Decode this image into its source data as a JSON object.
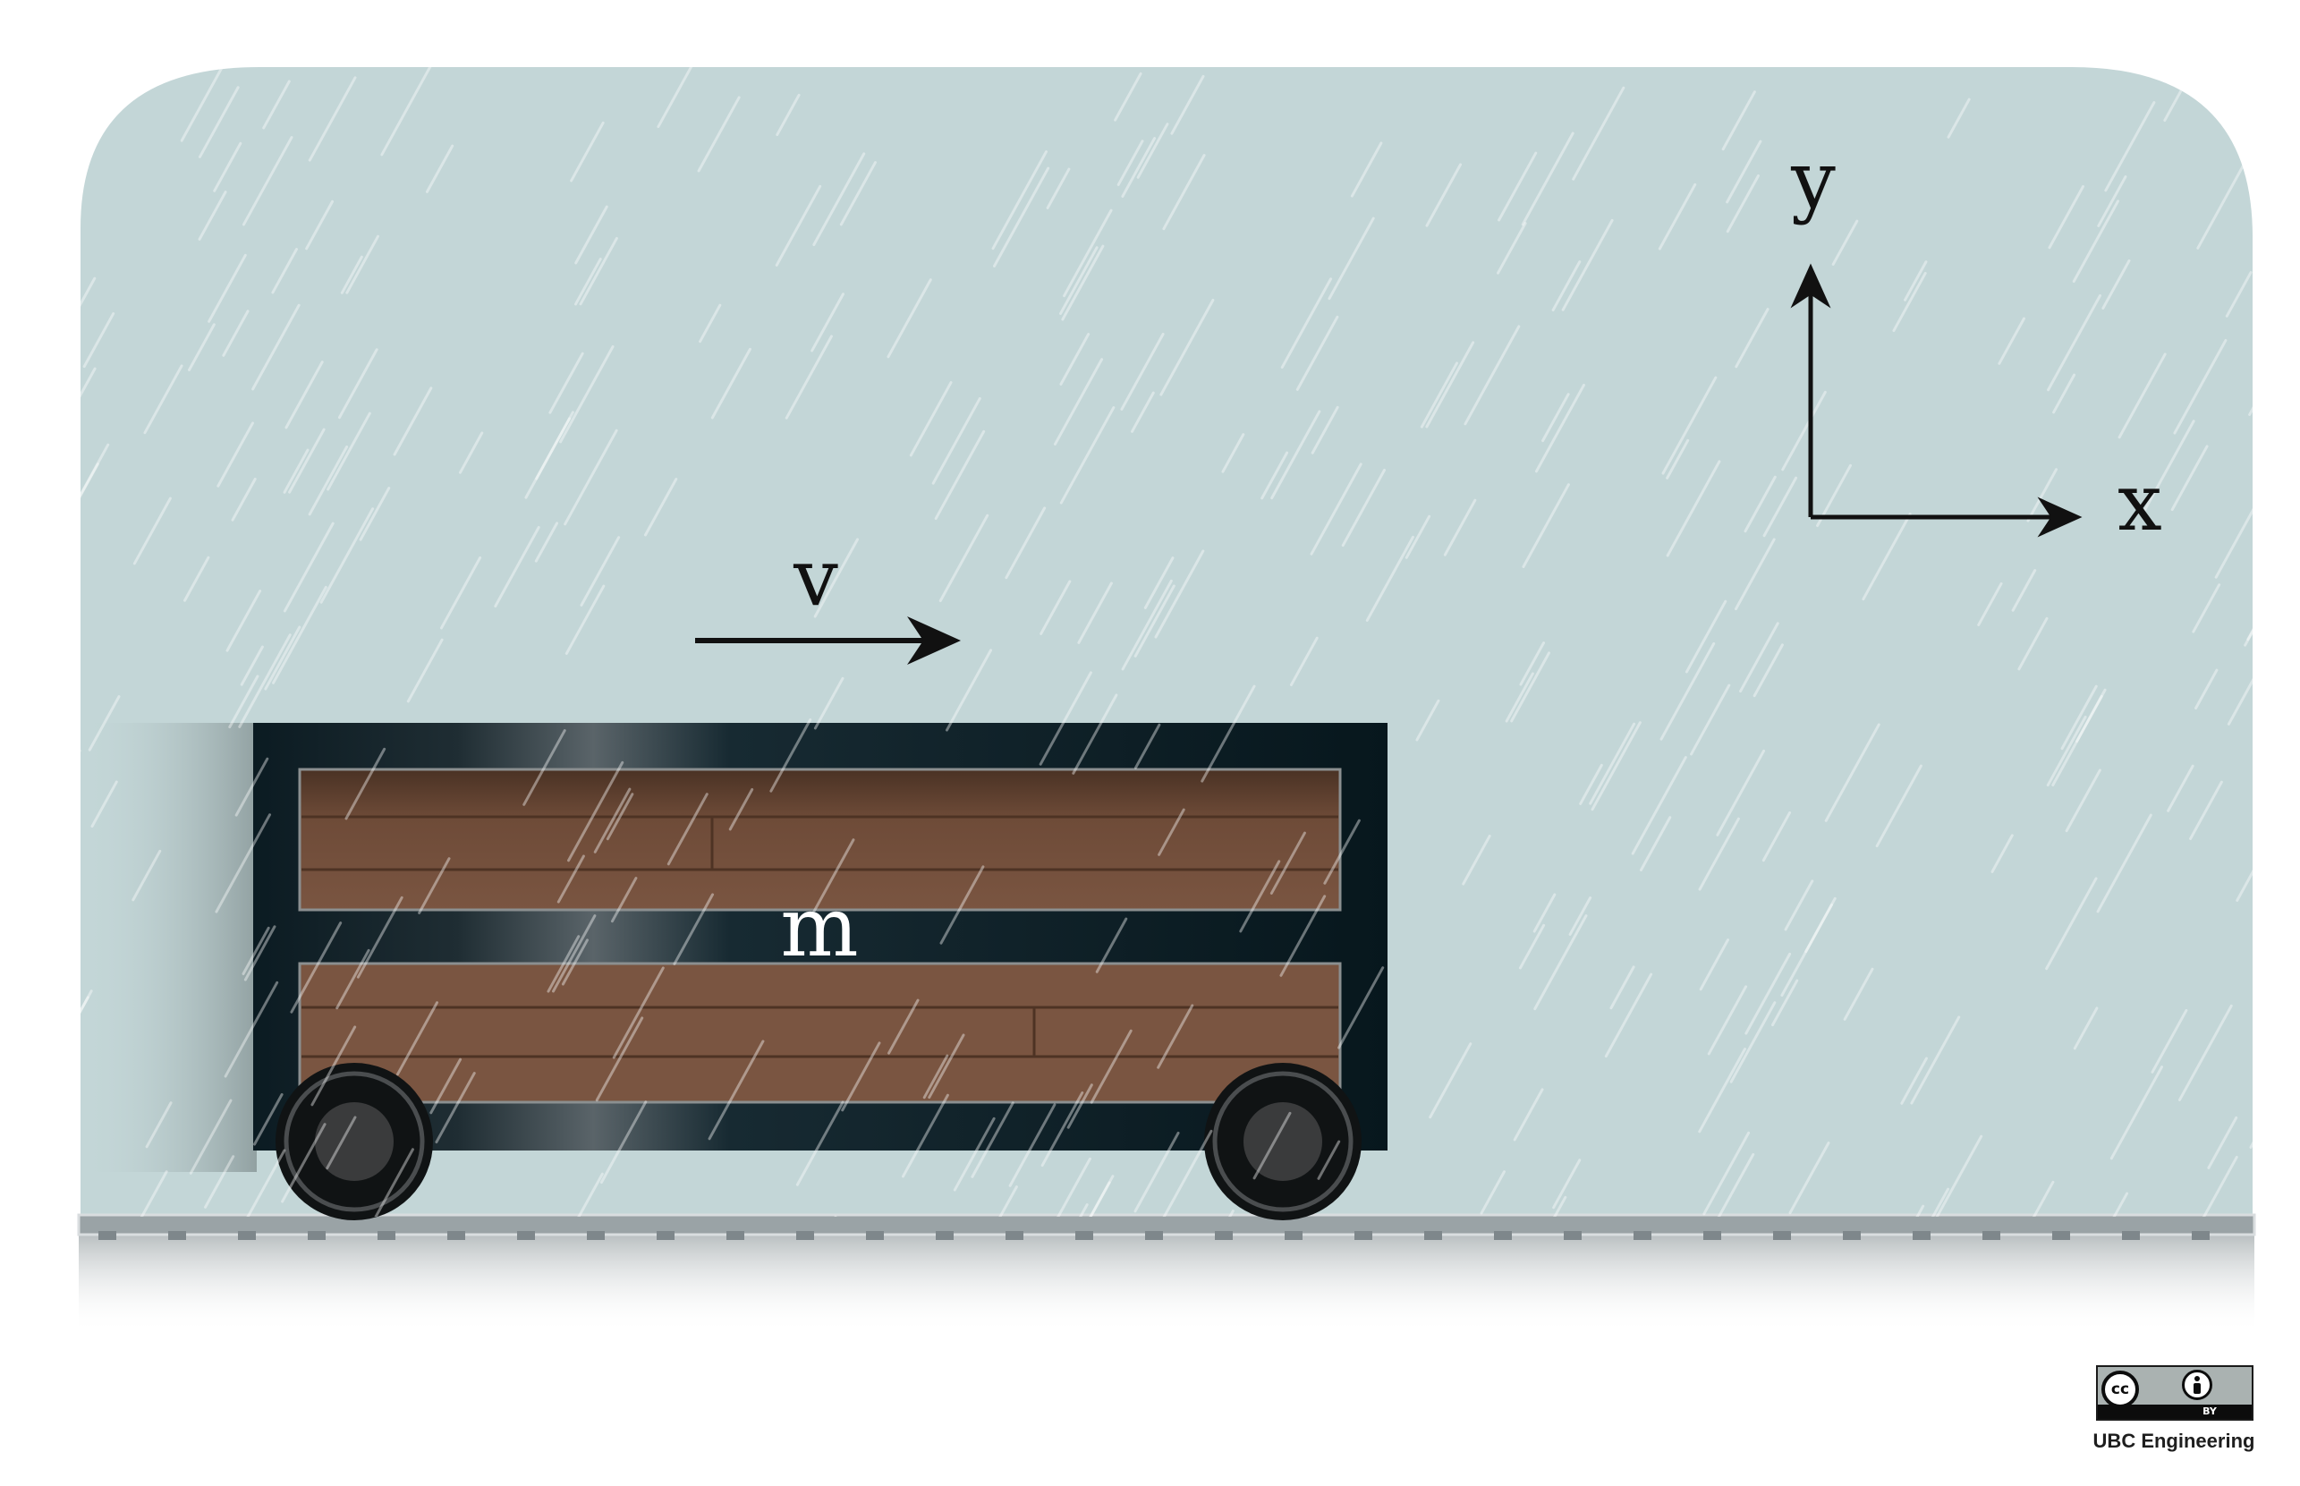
{
  "diagram": {
    "subject": "cart with mass m moving at velocity v on a track in the rain",
    "labels": {
      "velocity": "v",
      "mass": "m",
      "axis_x": "x",
      "axis_y": "y"
    }
  },
  "license": {
    "badge_text": "BY",
    "cc_text": "cc",
    "credit": "UBC Engineering"
  },
  "colors": {
    "sky": "#c3d6d7",
    "frame": "#0b1b22",
    "wood": "#7a5541",
    "wood_line": "#4e3324",
    "wheel_outer": "#101314",
    "wheel_hub": "#3a3b3c",
    "track": "#9aa3a6",
    "arrow": "#111111",
    "label_light": "#ffffff"
  }
}
